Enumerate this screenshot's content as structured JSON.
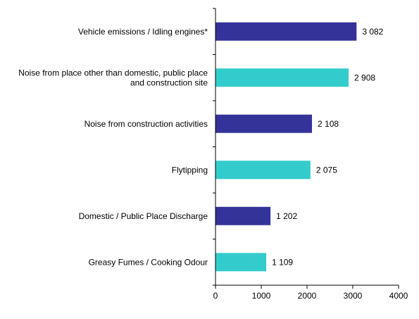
{
  "chart_data": {
    "type": "bar",
    "orientation": "horizontal",
    "categories": [
      [
        "Vehicle emissions / Idling engines*"
      ],
      [
        "Noise from place other than domestic, public place",
        "and construction site"
      ],
      [
        "Noise from construction activities"
      ],
      [
        "Flytipping"
      ],
      [
        "Domestic / Public Place Discharge"
      ],
      [
        "Greasy Fumes / Cooking Odour"
      ]
    ],
    "values": [
      3082,
      2908,
      2108,
      2075,
      1202,
      1109
    ],
    "value_labels": [
      "3 082",
      "2 908",
      "2 108",
      "2 075",
      "1 202",
      "1 109"
    ],
    "bar_colors": [
      "#333399",
      "#33CCCC",
      "#333399",
      "#33CCCC",
      "#333399",
      "#33CCCC"
    ],
    "xlim": [
      0,
      4000
    ],
    "xticks": [
      0,
      1000,
      2000,
      3000,
      4000
    ],
    "grid": false,
    "legend": "none"
  }
}
